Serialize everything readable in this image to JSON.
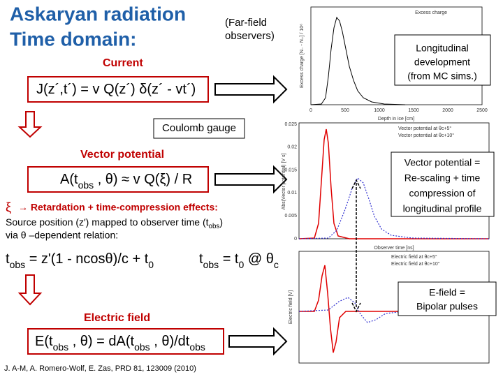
{
  "title": [
    "Askaryan radiation",
    "Time domain:"
  ],
  "far_field": [
    "(Far-field",
    "observers)"
  ],
  "current_label": "Current",
  "vector_label": "Vector potential",
  "electric_label": "Electric field",
  "coulomb": "Coulomb gauge",
  "xi_symbol": "ξ",
  "xi_text": "→ Retardation + time-compression effects:",
  "relation_line": "via θ –dependent relation:",
  "citation": "J. A-M, A. Romero-Wolf, E. Zas, PRD 81, 123009 (2010)",
  "callouts": [
    [
      "Longitudinal",
      "development",
      "(from MC sims.)"
    ],
    [
      "Vector potential =",
      "Re-scaling + time",
      "compression of",
      "longitudinal profile"
    ],
    [
      "E-field =",
      "Bipolar pulses"
    ]
  ],
  "formulas": [
    [
      {
        "t": "J(z´,t´) = v Q(z´) δ(z´ - vt´)"
      }
    ],
    [
      {
        "t": "A(t"
      },
      {
        "sub": "obs"
      },
      {
        "t": " , θ) ≈ v Q(ξ) / R"
      }
    ],
    [
      {
        "t": "t"
      },
      {
        "sub": "obs"
      },
      {
        "t": " = z'(1 - ncosθ)/c + t"
      },
      {
        "sub": "0"
      }
    ],
    [
      {
        "t": "t"
      },
      {
        "sub": "obs"
      },
      {
        "t": " = t"
      },
      {
        "sub": "0"
      },
      {
        "t": " @ θ"
      },
      {
        "sub": "c"
      }
    ],
    [
      {
        "t": "E(t"
      },
      {
        "sub": "obs"
      },
      {
        "t": " , θ) = dA(t"
      },
      {
        "sub": "obs"
      },
      {
        "t": " , θ)/dt"
      },
      {
        "sub": "obs"
      }
    ],
    [
      {
        "t": "Source position (z′) mapped to observer time (t"
      },
      {
        "sub": "obs"
      },
      {
        "t": ")"
      }
    ]
  ],
  "plots": [
    {
      "legend": [
        "Excess charge"
      ],
      "xlabel": "Depth in ice [cm]",
      "ylabel": "Excess charge [N₋ - N₊] / 10⁶",
      "xticks": [
        "0",
        "500",
        "1000",
        "1500",
        "2000",
        "2500"
      ]
    },
    {
      "legend": [
        "Vector potential at θc+5°",
        "Vector potential at θc+10°"
      ],
      "xlabel": "Observer time [ns]",
      "ylabel": "Abs(Vector potential) [V s]",
      "yticks": [
        "0.025",
        "0.02",
        "0.015",
        "0.01",
        "0.005",
        "0"
      ]
    },
    {
      "legend": [
        "Electric field at θc+5°",
        "Electric field at θc+10°"
      ],
      "ylabel": "Electric field [V]"
    }
  ]
}
